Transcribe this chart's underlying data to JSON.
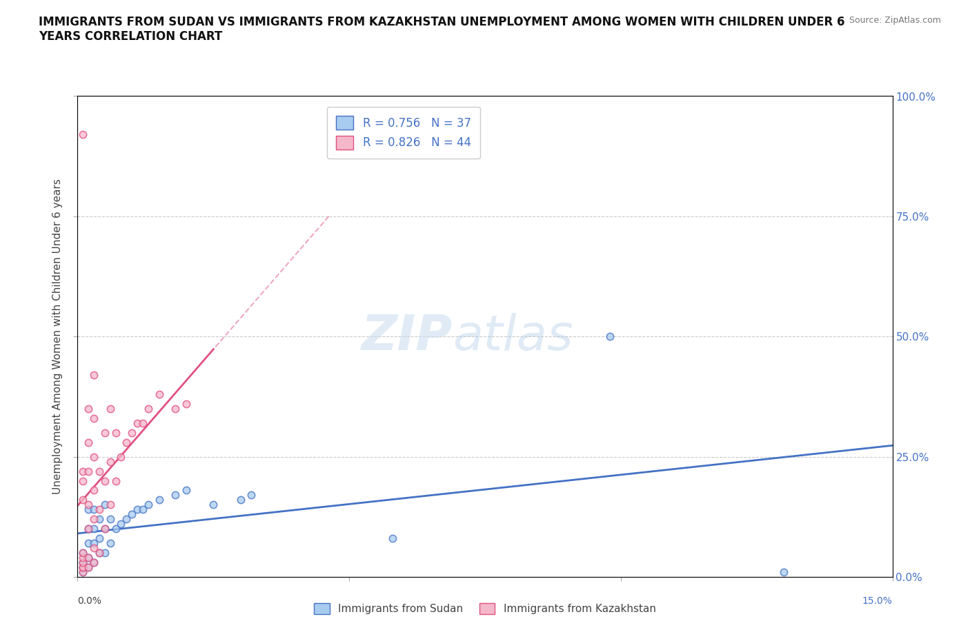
{
  "title": "IMMIGRANTS FROM SUDAN VS IMMIGRANTS FROM KAZAKHSTAN UNEMPLOYMENT AMONG WOMEN WITH CHILDREN UNDER 6\nYEARS CORRELATION CHART",
  "source": "Source: ZipAtlas.com",
  "ylabel": "Unemployment Among Women with Children Under 6 years",
  "xlim": [
    0.0,
    0.15
  ],
  "ylim": [
    0.0,
    1.0
  ],
  "yticks": [
    0.0,
    0.25,
    0.5,
    0.75,
    1.0
  ],
  "ytick_labels": [
    "0.0%",
    "25.0%",
    "50.0%",
    "75.0%",
    "100.0%"
  ],
  "sudan_color": "#A8CCF0",
  "sudan_edge_color": "#4472C4",
  "sudan_line_color": "#4472C4",
  "kazakhstan_color": "#F5B8CA",
  "kazakhstan_edge_color": "#E05080",
  "kazakhstan_line_color": "#E05080",
  "background_color": "#FFFFFF",
  "grid_color": "#BBBBBB",
  "watermark_zip": "ZIP",
  "watermark_atlas": "atlas",
  "legend_sudan_R": "0.756",
  "legend_sudan_N": "37",
  "legend_kazakhstan_R": "0.826",
  "legend_kazakhstan_N": "44",
  "sudan_x": [
    0.001,
    0.001,
    0.001,
    0.001,
    0.002,
    0.002,
    0.002,
    0.002,
    0.002,
    0.003,
    0.003,
    0.003,
    0.003,
    0.004,
    0.004,
    0.004,
    0.005,
    0.005,
    0.005,
    0.006,
    0.006,
    0.007,
    0.008,
    0.009,
    0.01,
    0.011,
    0.012,
    0.013,
    0.015,
    0.018,
    0.02,
    0.025,
    0.03,
    0.032,
    0.058,
    0.098,
    0.13
  ],
  "sudan_y": [
    0.01,
    0.02,
    0.03,
    0.05,
    0.02,
    0.04,
    0.07,
    0.1,
    0.14,
    0.03,
    0.07,
    0.1,
    0.14,
    0.05,
    0.08,
    0.12,
    0.05,
    0.1,
    0.15,
    0.07,
    0.12,
    0.1,
    0.11,
    0.12,
    0.13,
    0.14,
    0.14,
    0.15,
    0.16,
    0.17,
    0.18,
    0.15,
    0.16,
    0.17,
    0.08,
    0.5,
    0.01
  ],
  "kazakhstan_x": [
    0.001,
    0.001,
    0.001,
    0.001,
    0.001,
    0.001,
    0.001,
    0.001,
    0.001,
    0.001,
    0.002,
    0.002,
    0.002,
    0.002,
    0.002,
    0.002,
    0.002,
    0.003,
    0.003,
    0.003,
    0.003,
    0.003,
    0.003,
    0.003,
    0.004,
    0.004,
    0.004,
    0.005,
    0.005,
    0.005,
    0.006,
    0.006,
    0.006,
    0.007,
    0.007,
    0.008,
    0.009,
    0.01,
    0.011,
    0.012,
    0.013,
    0.015,
    0.018,
    0.02
  ],
  "kazakhstan_y": [
    0.01,
    0.02,
    0.02,
    0.03,
    0.04,
    0.05,
    0.16,
    0.2,
    0.22,
    0.92,
    0.02,
    0.04,
    0.1,
    0.15,
    0.22,
    0.28,
    0.35,
    0.03,
    0.06,
    0.12,
    0.18,
    0.25,
    0.33,
    0.42,
    0.05,
    0.14,
    0.22,
    0.1,
    0.2,
    0.3,
    0.15,
    0.24,
    0.35,
    0.2,
    0.3,
    0.25,
    0.28,
    0.3,
    0.32,
    0.32,
    0.35,
    0.38,
    0.35,
    0.36
  ]
}
